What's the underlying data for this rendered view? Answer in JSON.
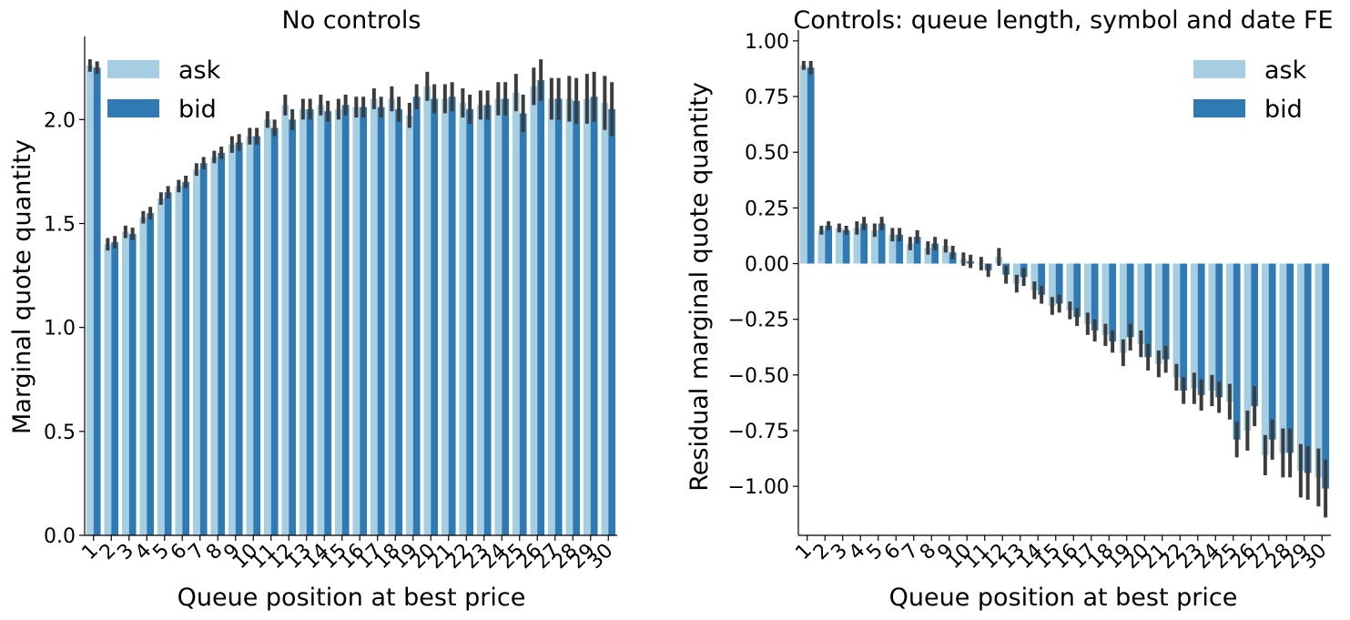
{
  "colors": {
    "ask": "#a6cee3",
    "bid": "#2e7ab4",
    "error_bar": "#3c3c3c",
    "axis": "#000000"
  },
  "legend": {
    "ask_label": "ask",
    "bid_label": "bid",
    "placement": "upper-left / upper-right"
  },
  "chart_data": [
    {
      "type": "bar",
      "title": "No controls",
      "xlabel": "Queue position at best price",
      "ylabel": "Marginal quote quantity",
      "ylim": [
        0,
        2.4
      ],
      "yticks": [
        "0.0",
        "0.5",
        "1.0",
        "1.5",
        "2.0"
      ],
      "grid": false,
      "legend_position": "top-left",
      "categories": [
        "1",
        "2",
        "3",
        "4",
        "5",
        "6",
        "7",
        "8",
        "9",
        "10",
        "11",
        "12",
        "13",
        "14",
        "15",
        "16",
        "17",
        "18",
        "19",
        "20",
        "21",
        "22",
        "23",
        "24",
        "25",
        "26",
        "27",
        "28",
        "29",
        "30"
      ],
      "series": [
        {
          "name": "ask",
          "values": [
            2.26,
            1.4,
            1.46,
            1.53,
            1.62,
            1.68,
            1.76,
            1.82,
            1.88,
            1.92,
            2.0,
            2.07,
            2.05,
            2.07,
            2.05,
            2.06,
            2.1,
            2.1,
            2.02,
            2.16,
            2.1,
            2.08,
            2.07,
            2.1,
            2.13,
            2.16,
            2.1,
            2.1,
            2.1,
            2.08
          ],
          "errors": [
            0.03,
            0.03,
            0.03,
            0.03,
            0.03,
            0.03,
            0.03,
            0.03,
            0.04,
            0.04,
            0.04,
            0.05,
            0.05,
            0.05,
            0.05,
            0.05,
            0.05,
            0.06,
            0.06,
            0.07,
            0.07,
            0.07,
            0.07,
            0.08,
            0.09,
            0.09,
            0.1,
            0.11,
            0.12,
            0.13
          ]
        },
        {
          "name": "bid",
          "values": [
            2.25,
            1.41,
            1.45,
            1.55,
            1.65,
            1.7,
            1.79,
            1.84,
            1.89,
            1.92,
            1.96,
            2.0,
            2.05,
            2.04,
            2.07,
            2.06,
            2.06,
            2.05,
            2.11,
            2.1,
            2.11,
            2.05,
            2.07,
            2.1,
            2.03,
            2.19,
            2.1,
            2.09,
            2.11,
            2.05
          ],
          "errors": [
            0.03,
            0.03,
            0.03,
            0.03,
            0.03,
            0.03,
            0.03,
            0.03,
            0.04,
            0.04,
            0.04,
            0.05,
            0.05,
            0.05,
            0.05,
            0.05,
            0.05,
            0.06,
            0.06,
            0.07,
            0.07,
            0.07,
            0.07,
            0.08,
            0.09,
            0.1,
            0.1,
            0.11,
            0.12,
            0.13
          ]
        }
      ]
    },
    {
      "type": "bar",
      "title": "Controls: queue length, symbol and date FE",
      "xlabel": "Queue position at best price",
      "ylabel": "Residual marginal quote quantity",
      "ylim": [
        -1.22,
        1.02
      ],
      "yticks": [
        "1.00",
        "0.75",
        "0.50",
        "0.25",
        "0.00",
        "−0.25",
        "−0.50",
        "−0.75",
        "−1.00"
      ],
      "grid": false,
      "legend_position": "top-right",
      "categories": [
        "1",
        "2",
        "3",
        "4",
        "5",
        "6",
        "7",
        "8",
        "9",
        "10",
        "11",
        "12",
        "13",
        "14",
        "15",
        "16",
        "17",
        "18",
        "19",
        "20",
        "21",
        "22",
        "23",
        "24",
        "25",
        "26",
        "27",
        "28",
        "29",
        "30"
      ],
      "series": [
        {
          "name": "ask",
          "values": [
            0.89,
            0.15,
            0.16,
            0.16,
            0.15,
            0.13,
            0.09,
            0.07,
            0.08,
            0.02,
            0.0,
            0.03,
            -0.09,
            -0.12,
            -0.19,
            -0.21,
            -0.27,
            -0.32,
            -0.4,
            -0.36,
            -0.45,
            -0.51,
            -0.56,
            -0.57,
            -0.62,
            -0.75,
            -0.86,
            -0.85,
            -0.93,
            -0.96
          ],
          "errors": [
            0.02,
            0.02,
            0.02,
            0.03,
            0.03,
            0.03,
            0.03,
            0.03,
            0.03,
            0.03,
            0.03,
            0.04,
            0.04,
            0.04,
            0.04,
            0.04,
            0.05,
            0.05,
            0.06,
            0.06,
            0.06,
            0.06,
            0.07,
            0.07,
            0.08,
            0.09,
            0.09,
            0.11,
            0.12,
            0.13
          ]
        },
        {
          "name": "bid",
          "values": [
            0.88,
            0.17,
            0.15,
            0.18,
            0.18,
            0.13,
            0.12,
            0.09,
            0.05,
            0.01,
            -0.03,
            -0.05,
            -0.06,
            -0.14,
            -0.18,
            -0.24,
            -0.3,
            -0.35,
            -0.33,
            -0.42,
            -0.43,
            -0.57,
            -0.59,
            -0.6,
            -0.79,
            -0.64,
            -0.79,
            -0.85,
            -0.94,
            -1.01
          ],
          "errors": [
            0.03,
            0.02,
            0.02,
            0.03,
            0.03,
            0.03,
            0.03,
            0.03,
            0.03,
            0.03,
            0.03,
            0.04,
            0.04,
            0.04,
            0.04,
            0.04,
            0.05,
            0.05,
            0.06,
            0.06,
            0.06,
            0.06,
            0.07,
            0.07,
            0.08,
            0.09,
            0.09,
            0.11,
            0.12,
            0.13
          ]
        }
      ]
    }
  ]
}
